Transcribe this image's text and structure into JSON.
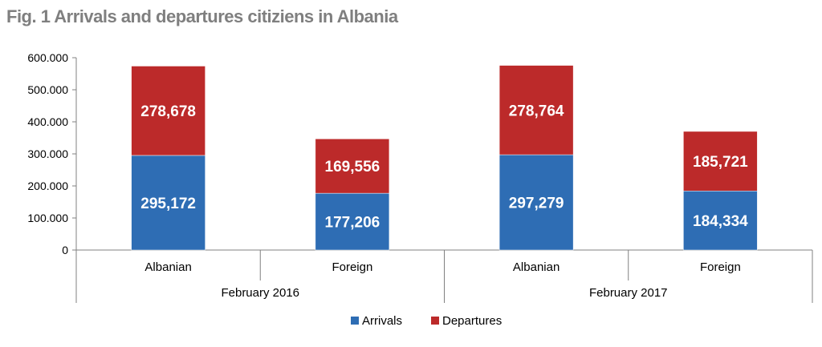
{
  "chart_data": {
    "type": "bar",
    "stacked": true,
    "title": "Fig. 1 Arrivals and departures citiziens in Albania",
    "groups": [
      "February 2016",
      "February 2017"
    ],
    "categories": [
      "Albanian",
      "Foreign",
      "Albanian",
      "Foreign"
    ],
    "category_group": [
      0,
      0,
      1,
      1
    ],
    "series": [
      {
        "name": "Arrivals",
        "color": "#2e6db4",
        "values": [
          295172,
          177206,
          297279,
          184334
        ],
        "labels": [
          "295,172",
          "177,206",
          "297,279",
          "184,334"
        ]
      },
      {
        "name": "Departures",
        "color": "#bc2a2a",
        "values": [
          278678,
          169556,
          278764,
          185721
        ],
        "labels": [
          "278,678",
          "169,556",
          "278,764",
          "185,721"
        ]
      }
    ],
    "ylim": [
      0,
      600000
    ],
    "yticks": [
      0,
      100000,
      200000,
      300000,
      400000,
      500000,
      600000
    ],
    "ytick_labels": [
      "0",
      "100.000",
      "200.000",
      "300.000",
      "400.000",
      "500.000",
      "600.000"
    ],
    "grid": false,
    "legend_position": "bottom"
  }
}
